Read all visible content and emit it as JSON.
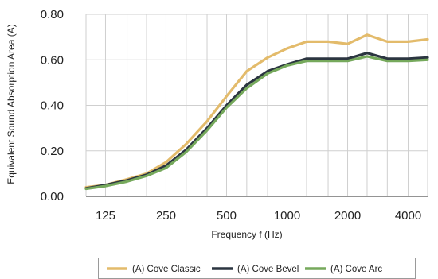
{
  "chart_data": {
    "type": "line",
    "xlabel": "Frequency f (Hz)",
    "ylabel": "Equivalent Sound Absorption Area (A)",
    "x": [
      100,
      125,
      160,
      200,
      250,
      315,
      400,
      500,
      630,
      800,
      1000,
      1250,
      1600,
      2000,
      2500,
      3150,
      4000,
      5000
    ],
    "x_tick_labels": [
      "125",
      "250",
      "500",
      "1000",
      "2000",
      "4000"
    ],
    "x_tick_values": [
      125,
      250,
      500,
      1000,
      2000,
      4000
    ],
    "y_ticks": [
      "0.00",
      "0.20",
      "0.40",
      "0.60",
      "0.80"
    ],
    "y_tick_values": [
      0,
      0.2,
      0.4,
      0.6,
      0.8
    ],
    "ylim": [
      0,
      0.8
    ],
    "x_scale": "log",
    "grid": "vertical and horizontal",
    "legend_position": "bottom",
    "series": [
      {
        "name": "(A) Cove Classic",
        "color": "#e3bb6b",
        "values": [
          0.04,
          0.05,
          0.075,
          0.1,
          0.15,
          0.23,
          0.33,
          0.44,
          0.55,
          0.61,
          0.65,
          0.68,
          0.68,
          0.67,
          0.71,
          0.68,
          0.68,
          0.69
        ]
      },
      {
        "name": "(A) Cove Bevel",
        "color": "#2b3540",
        "values": [
          0.035,
          0.05,
          0.07,
          0.095,
          0.135,
          0.205,
          0.3,
          0.4,
          0.49,
          0.55,
          0.58,
          0.605,
          0.605,
          0.605,
          0.63,
          0.605,
          0.605,
          0.61
        ]
      },
      {
        "name": "(A) Cove Arc",
        "color": "#76a95c",
        "values": [
          0.033,
          0.045,
          0.065,
          0.09,
          0.125,
          0.195,
          0.29,
          0.39,
          0.475,
          0.54,
          0.575,
          0.595,
          0.595,
          0.595,
          0.615,
          0.595,
          0.595,
          0.6
        ]
      }
    ]
  }
}
